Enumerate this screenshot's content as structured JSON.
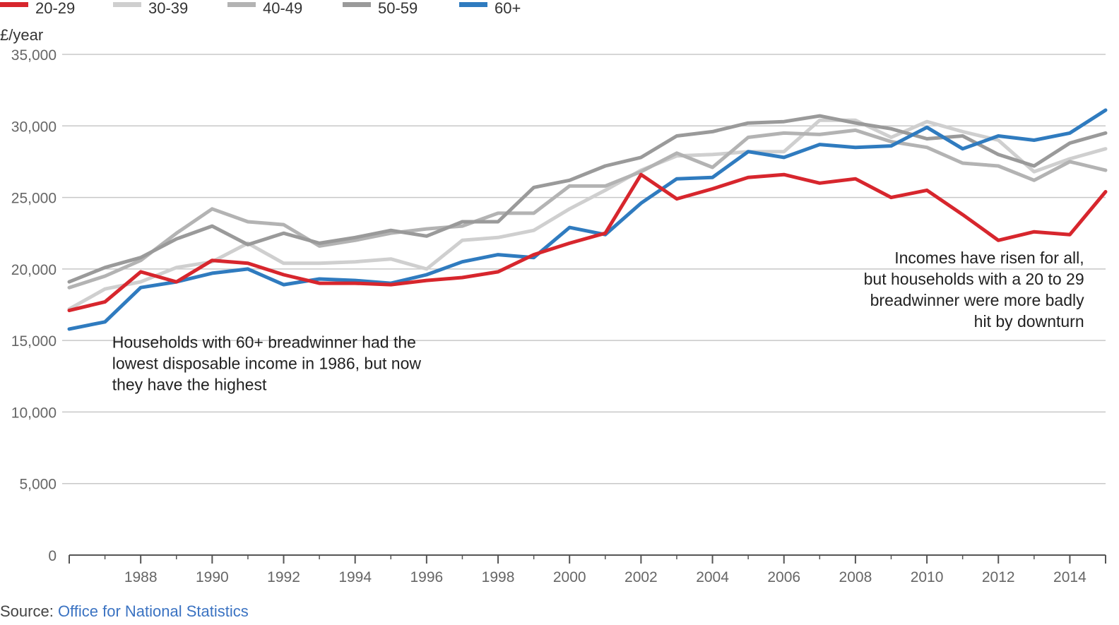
{
  "chart_data": {
    "type": "line",
    "ylabel": "£/year",
    "xlim": [
      1986,
      2015
    ],
    "ylim": [
      0,
      35000
    ],
    "y_ticks": [
      0,
      5000,
      10000,
      15000,
      20000,
      25000,
      30000,
      35000
    ],
    "x_ticks": [
      1988,
      1990,
      1992,
      1994,
      1996,
      1998,
      2000,
      2002,
      2004,
      2006,
      2008,
      2010,
      2012,
      2014
    ],
    "grid": "horizontal",
    "legend_position": "top-left",
    "x": [
      1986,
      1987,
      1988,
      1989,
      1990,
      1991,
      1992,
      1993,
      1994,
      1995,
      1996,
      1997,
      1998,
      1999,
      2000,
      2001,
      2002,
      2003,
      2004,
      2005,
      2006,
      2007,
      2008,
      2009,
      2010,
      2011,
      2012,
      2013,
      2014,
      2015
    ],
    "series": [
      {
        "name": "30-39",
        "color": "#cfcfcf",
        "values": [
          17200,
          18600,
          19100,
          20100,
          20500,
          21800,
          20400,
          20400,
          20500,
          20700,
          20000,
          22000,
          22200,
          22700,
          24200,
          25500,
          26900,
          27900,
          28000,
          28200,
          28200,
          30400,
          30400,
          29200,
          30300,
          29600,
          29000,
          26800,
          27700,
          28400
        ]
      },
      {
        "name": "40-49",
        "color": "#b3b3b3",
        "values": [
          18700,
          19500,
          20600,
          22500,
          24200,
          23300,
          23100,
          21600,
          22000,
          22500,
          22800,
          23000,
          23900,
          23900,
          25800,
          25800,
          26800,
          28100,
          27100,
          29200,
          29500,
          29400,
          29700,
          28900,
          28500,
          27400,
          27200,
          26200,
          27500,
          26900
        ]
      },
      {
        "name": "50-59",
        "color": "#9a9a9a",
        "values": [
          19100,
          20100,
          20800,
          22100,
          23000,
          21700,
          22500,
          21800,
          22200,
          22700,
          22300,
          23300,
          23300,
          25700,
          26200,
          27200,
          27800,
          29300,
          29600,
          30200,
          30300,
          30700,
          30200,
          29800,
          29100,
          29300,
          28000,
          27200,
          28800,
          29500
        ]
      },
      {
        "name": "60+",
        "color": "#2f7bbf",
        "values": [
          15800,
          16300,
          18700,
          19100,
          19700,
          20000,
          18900,
          19300,
          19200,
          19000,
          19600,
          20500,
          21000,
          20800,
          22900,
          22400,
          24600,
          26300,
          26400,
          28200,
          27800,
          28700,
          28500,
          28600,
          29900,
          28400,
          29300,
          29000,
          29500,
          31100
        ]
      },
      {
        "name": "20-29",
        "color": "#d7262d",
        "values": [
          17100,
          17700,
          19800,
          19100,
          20600,
          20400,
          19600,
          19000,
          19000,
          18900,
          19200,
          19400,
          19800,
          21000,
          21800,
          22500,
          26600,
          24900,
          25600,
          26400,
          26600,
          26000,
          26300,
          25000,
          25500,
          23800,
          22000,
          22600,
          22400,
          25400
        ]
      }
    ],
    "legend_order": [
      "20-29",
      "30-39",
      "40-49",
      "50-59",
      "60+"
    ],
    "annotations": [
      {
        "x": 1987.2,
        "y": 14500,
        "anchor": "start",
        "lines": [
          "Households with 60+ breadwinner had the",
          "lowest disposable income in 1986, but now",
          "they have the highest"
        ]
      },
      {
        "x": 2014.4,
        "y": 20400,
        "anchor": "end",
        "lines": [
          "Incomes have risen for all,",
          "but households with a 20 to 29",
          "breadwinner were more badly",
          "hit by downturn"
        ]
      }
    ]
  },
  "source": {
    "prefix": "Source: ",
    "link_text": "Office for National Statistics"
  }
}
